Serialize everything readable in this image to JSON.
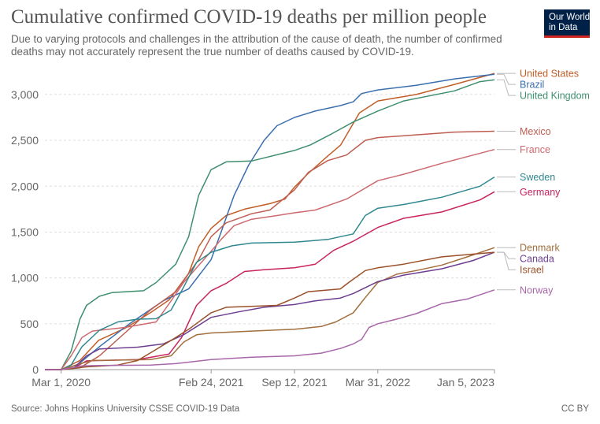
{
  "header": {
    "title": "Cumulative confirmed COVID-19 deaths per million people",
    "subtitle": "Due to varying protocols and challenges in the attribution of the cause of death, the number of confirmed deaths may not accurately represent the true number of deaths caused by COVID-19.",
    "logo_line1": "Our World",
    "logo_line2": "in Data"
  },
  "footer": {
    "source": "Source: Johns Hopkins University CSSE COVID-19 Data",
    "license": "CC BY"
  },
  "chart_data": {
    "type": "line",
    "title": "Cumulative confirmed COVID-19 deaths per million people",
    "xlabel": "",
    "ylabel": "",
    "x_domain": [
      "2020-01-22",
      "2023-01-05"
    ],
    "ylim": [
      0,
      3300
    ],
    "y_ticks": [
      0,
      500,
      1000,
      1500,
      2000,
      2500,
      3000
    ],
    "y_tick_labels": [
      "0",
      "500",
      "1,000",
      "1,500",
      "2,000",
      "2,500",
      "3,000"
    ],
    "x_ticks": [
      "2020-03-01",
      "2021-02-24",
      "2021-09-12",
      "2022-03-31",
      "2023-01-05"
    ],
    "x_tick_labels": [
      "Mar 1, 2020",
      "Feb 24, 2021",
      "Sep 12, 2021",
      "Mar 31, 2022",
      "Jan 5, 2023"
    ],
    "grid": "horizontal-dashed",
    "legend": "right-end-labels",
    "series": [
      {
        "name": "United States",
        "color": "#c15e27",
        "label_y": 3230,
        "points": [
          [
            "2020-03-01",
            0
          ],
          [
            "2020-04-15",
            100
          ],
          [
            "2020-05-30",
            320
          ],
          [
            "2020-08-01",
            450
          ],
          [
            "2020-10-01",
            620
          ],
          [
            "2020-11-15",
            760
          ],
          [
            "2021-01-01",
            1050
          ],
          [
            "2021-01-25",
            1340
          ],
          [
            "2021-02-24",
            1540
          ],
          [
            "2021-04-01",
            1680
          ],
          [
            "2021-05-15",
            1750
          ],
          [
            "2021-07-15",
            1810
          ],
          [
            "2021-08-20",
            1860
          ],
          [
            "2021-09-12",
            1990
          ],
          [
            "2021-10-15",
            2140
          ],
          [
            "2021-12-01",
            2330
          ],
          [
            "2022-01-01",
            2450
          ],
          [
            "2022-02-15",
            2800
          ],
          [
            "2022-03-31",
            2930
          ],
          [
            "2022-07-01",
            3000
          ],
          [
            "2022-10-01",
            3110
          ],
          [
            "2023-01-05",
            3230
          ]
        ]
      },
      {
        "name": "Brazil",
        "color": "#3a6fae",
        "label_y": 3140,
        "points": [
          [
            "2020-03-01",
            0
          ],
          [
            "2020-04-01",
            20
          ],
          [
            "2020-06-01",
            250
          ],
          [
            "2020-08-15",
            510
          ],
          [
            "2020-11-01",
            750
          ],
          [
            "2021-01-01",
            880
          ],
          [
            "2021-02-24",
            1200
          ],
          [
            "2021-03-20",
            1500
          ],
          [
            "2021-04-20",
            1900
          ],
          [
            "2021-05-25",
            2230
          ],
          [
            "2021-07-01",
            2500
          ],
          [
            "2021-08-01",
            2660
          ],
          [
            "2021-09-12",
            2750
          ],
          [
            "2021-11-01",
            2820
          ],
          [
            "2022-01-01",
            2880
          ],
          [
            "2022-01-31",
            2920
          ],
          [
            "2022-02-20",
            3010
          ],
          [
            "2022-03-31",
            3050
          ],
          [
            "2022-07-01",
            3100
          ],
          [
            "2022-10-01",
            3170
          ],
          [
            "2023-01-05",
            3220
          ]
        ]
      },
      {
        "name": "United Kingdom",
        "color": "#3f8f6f",
        "label_y": 3050,
        "points": [
          [
            "2020-03-01",
            0
          ],
          [
            "2020-03-25",
            200
          ],
          [
            "2020-04-15",
            550
          ],
          [
            "2020-05-01",
            700
          ],
          [
            "2020-06-01",
            800
          ],
          [
            "2020-07-01",
            840
          ],
          [
            "2020-09-15",
            860
          ],
          [
            "2020-10-15",
            950
          ],
          [
            "2020-12-01",
            1150
          ],
          [
            "2021-01-01",
            1450
          ],
          [
            "2021-01-25",
            1900
          ],
          [
            "2021-02-24",
            2180
          ],
          [
            "2021-04-01",
            2265
          ],
          [
            "2021-06-01",
            2275
          ],
          [
            "2021-09-12",
            2390
          ],
          [
            "2021-10-20",
            2450
          ],
          [
            "2021-12-10",
            2570
          ],
          [
            "2022-01-31",
            2700
          ],
          [
            "2022-03-31",
            2820
          ],
          [
            "2022-06-01",
            2930
          ],
          [
            "2022-10-01",
            3040
          ],
          [
            "2022-12-01",
            3140
          ],
          [
            "2023-01-05",
            3160
          ]
        ]
      },
      {
        "name": "Mexico",
        "color": "#be5d51",
        "label_y": 2600,
        "points": [
          [
            "2020-03-01",
            0
          ],
          [
            "2020-04-15",
            20
          ],
          [
            "2020-06-01",
            150
          ],
          [
            "2020-08-01",
            400
          ],
          [
            "2020-10-01",
            650
          ],
          [
            "2020-12-01",
            850
          ],
          [
            "2021-01-25",
            1200
          ],
          [
            "2021-02-24",
            1450
          ],
          [
            "2021-04-01",
            1600
          ],
          [
            "2021-06-01",
            1700
          ],
          [
            "2021-07-15",
            1740
          ],
          [
            "2021-09-12",
            1960
          ],
          [
            "2021-10-15",
            2150
          ],
          [
            "2021-12-01",
            2280
          ],
          [
            "2022-01-15",
            2340
          ],
          [
            "2022-03-01",
            2500
          ],
          [
            "2022-03-31",
            2530
          ],
          [
            "2022-07-01",
            2560
          ],
          [
            "2022-10-01",
            2590
          ],
          [
            "2023-01-05",
            2600
          ]
        ]
      },
      {
        "name": "France",
        "color": "#cd6a6f",
        "label_y": 2400,
        "points": [
          [
            "2020-03-01",
            0
          ],
          [
            "2020-03-25",
            150
          ],
          [
            "2020-04-20",
            350
          ],
          [
            "2020-05-15",
            420
          ],
          [
            "2020-08-01",
            460
          ],
          [
            "2020-10-15",
            520
          ],
          [
            "2020-11-20",
            750
          ],
          [
            "2020-12-20",
            950
          ],
          [
            "2021-02-24",
            1290
          ],
          [
            "2021-03-20",
            1420
          ],
          [
            "2021-04-20",
            1570
          ],
          [
            "2021-06-01",
            1640
          ],
          [
            "2021-08-01",
            1680
          ],
          [
            "2021-09-12",
            1710
          ],
          [
            "2021-11-01",
            1740
          ],
          [
            "2022-01-15",
            1860
          ],
          [
            "2022-03-31",
            2060
          ],
          [
            "2022-06-01",
            2130
          ],
          [
            "2022-09-01",
            2250
          ],
          [
            "2023-01-05",
            2400
          ]
        ]
      },
      {
        "name": "Sweden",
        "color": "#30888f",
        "label_y": 2100,
        "points": [
          [
            "2020-03-01",
            0
          ],
          [
            "2020-03-25",
            50
          ],
          [
            "2020-04-20",
            250
          ],
          [
            "2020-06-01",
            430
          ],
          [
            "2020-07-15",
            520
          ],
          [
            "2020-09-01",
            550
          ],
          [
            "2020-10-15",
            555
          ],
          [
            "2020-11-20",
            650
          ],
          [
            "2020-12-20",
            900
          ],
          [
            "2021-01-20",
            1170
          ],
          [
            "2021-02-24",
            1280
          ],
          [
            "2021-04-15",
            1350
          ],
          [
            "2021-06-01",
            1380
          ],
          [
            "2021-09-12",
            1390
          ],
          [
            "2021-12-01",
            1420
          ],
          [
            "2022-01-31",
            1480
          ],
          [
            "2022-03-01",
            1680
          ],
          [
            "2022-03-31",
            1760
          ],
          [
            "2022-06-01",
            1800
          ],
          [
            "2022-09-01",
            1880
          ],
          [
            "2022-12-01",
            2000
          ],
          [
            "2023-01-05",
            2100
          ]
        ]
      },
      {
        "name": "Germany",
        "color": "#c8245f",
        "label_y": 1940,
        "points": [
          [
            "2020-03-01",
            0
          ],
          [
            "2020-04-01",
            20
          ],
          [
            "2020-05-01",
            95
          ],
          [
            "2020-09-01",
            110
          ],
          [
            "2020-11-15",
            170
          ],
          [
            "2020-12-15",
            350
          ],
          [
            "2021-01-20",
            700
          ],
          [
            "2021-02-24",
            860
          ],
          [
            "2021-04-01",
            940
          ],
          [
            "2021-05-15",
            1070
          ],
          [
            "2021-07-01",
            1090
          ],
          [
            "2021-09-12",
            1110
          ],
          [
            "2021-11-01",
            1150
          ],
          [
            "2021-12-15",
            1300
          ],
          [
            "2022-01-31",
            1400
          ],
          [
            "2022-03-31",
            1550
          ],
          [
            "2022-06-01",
            1650
          ],
          [
            "2022-09-01",
            1720
          ],
          [
            "2022-12-01",
            1850
          ],
          [
            "2023-01-05",
            1940
          ]
        ]
      },
      {
        "name": "Denmark",
        "color": "#a26e3c",
        "label_y": 1330,
        "points": [
          [
            "2020-03-01",
            0
          ],
          [
            "2020-04-20",
            70
          ],
          [
            "2020-05-15",
            100
          ],
          [
            "2020-10-01",
            110
          ],
          [
            "2020-11-20",
            150
          ],
          [
            "2020-12-20",
            300
          ],
          [
            "2021-01-20",
            380
          ],
          [
            "2021-02-24",
            400
          ],
          [
            "2021-06-01",
            420
          ],
          [
            "2021-09-12",
            440
          ],
          [
            "2021-11-15",
            470
          ],
          [
            "2021-12-20",
            520
          ],
          [
            "2022-01-31",
            620
          ],
          [
            "2022-02-28",
            780
          ],
          [
            "2022-03-31",
            950
          ],
          [
            "2022-05-15",
            1040
          ],
          [
            "2022-07-01",
            1080
          ],
          [
            "2022-09-01",
            1140
          ],
          [
            "2022-11-01",
            1230
          ],
          [
            "2023-01-05",
            1330
          ]
        ]
      },
      {
        "name": "Canada",
        "color": "#6d3e91",
        "label_y": 1280,
        "points": [
          [
            "2020-03-01",
            0
          ],
          [
            "2020-04-01",
            20
          ],
          [
            "2020-05-01",
            150
          ],
          [
            "2020-06-01",
            225
          ],
          [
            "2020-09-01",
            245
          ],
          [
            "2020-11-01",
            280
          ],
          [
            "2020-12-20",
            380
          ],
          [
            "2021-01-31",
            500
          ],
          [
            "2021-02-24",
            570
          ],
          [
            "2021-05-01",
            630
          ],
          [
            "2021-07-01",
            680
          ],
          [
            "2021-09-12",
            710
          ],
          [
            "2021-11-01",
            750
          ],
          [
            "2021-12-31",
            780
          ],
          [
            "2022-01-31",
            830
          ],
          [
            "2022-03-31",
            960
          ],
          [
            "2022-06-01",
            1030
          ],
          [
            "2022-09-01",
            1100
          ],
          [
            "2022-11-15",
            1190
          ],
          [
            "2023-01-05",
            1280
          ]
        ]
      },
      {
        "name": "Israel",
        "color": "#9a5029",
        "label_y": 1180,
        "points": [
          [
            "2020-03-01",
            0
          ],
          [
            "2020-05-01",
            30
          ],
          [
            "2020-07-15",
            50
          ],
          [
            "2020-09-01",
            100
          ],
          [
            "2020-10-15",
            220
          ],
          [
            "2020-12-01",
            350
          ],
          [
            "2021-01-01",
            440
          ],
          [
            "2021-02-24",
            620
          ],
          [
            "2021-04-01",
            680
          ],
          [
            "2021-08-01",
            700
          ],
          [
            "2021-09-12",
            780
          ],
          [
            "2021-10-15",
            850
          ],
          [
            "2021-12-31",
            880
          ],
          [
            "2022-01-20",
            950
          ],
          [
            "2022-03-01",
            1080
          ],
          [
            "2022-03-31",
            1110
          ],
          [
            "2022-06-01",
            1150
          ],
          [
            "2022-09-01",
            1230
          ],
          [
            "2023-01-05",
            1280
          ]
        ]
      },
      {
        "name": "Norway",
        "color": "#a767a8",
        "label_y": 870,
        "points": [
          [
            "2020-03-01",
            0
          ],
          [
            "2020-04-20",
            40
          ],
          [
            "2020-06-01",
            45
          ],
          [
            "2020-10-01",
            50
          ],
          [
            "2020-12-01",
            65
          ],
          [
            "2021-02-24",
            110
          ],
          [
            "2021-06-01",
            135
          ],
          [
            "2021-09-12",
            150
          ],
          [
            "2021-11-15",
            180
          ],
          [
            "2021-12-31",
            230
          ],
          [
            "2022-01-31",
            280
          ],
          [
            "2022-02-20",
            330
          ],
          [
            "2022-03-10",
            460
          ],
          [
            "2022-03-31",
            500
          ],
          [
            "2022-05-15",
            550
          ],
          [
            "2022-07-01",
            610
          ],
          [
            "2022-09-01",
            720
          ],
          [
            "2022-11-01",
            770
          ],
          [
            "2023-01-05",
            870
          ]
        ]
      }
    ]
  }
}
